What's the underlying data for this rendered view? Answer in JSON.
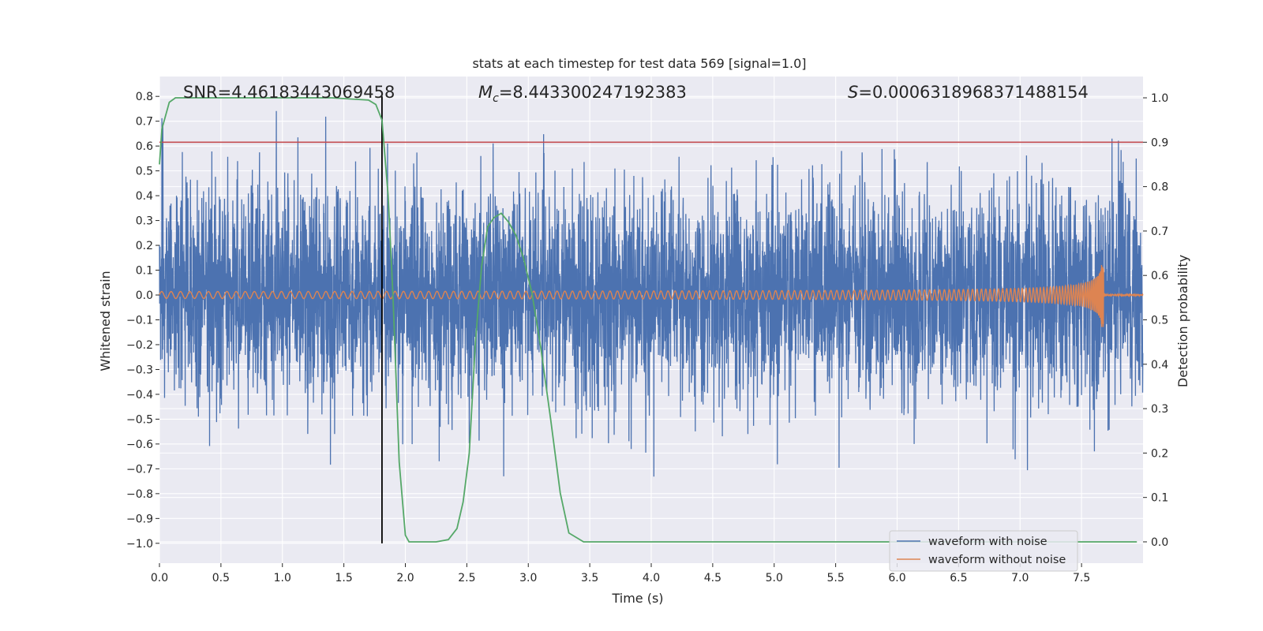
{
  "chart_data": {
    "type": "line",
    "title": "stats at each timestep for test data 569 [signal=1.0]",
    "xlabel": "Time (s)",
    "ylabel_left": "Whitened strain",
    "ylabel_right": "Detection probability",
    "xlim": [
      0.0,
      8.0
    ],
    "ylim_left": [
      -1.08,
      0.88
    ],
    "ylim_right": [
      -0.048,
      1.048
    ],
    "xticks": [
      "0.0",
      "0.5",
      "1.0",
      "1.5",
      "2.0",
      "2.5",
      "3.0",
      "3.5",
      "4.0",
      "4.5",
      "5.0",
      "5.5",
      "6.0",
      "6.5",
      "7.0",
      "7.5"
    ],
    "yticks_left": [
      "0.8",
      "0.7",
      "0.6",
      "0.5",
      "0.4",
      "0.3",
      "0.2",
      "0.1",
      "0.0",
      "−0.1",
      "−0.2",
      "−0.3",
      "−0.4",
      "−0.5",
      "−0.6",
      "−0.7",
      "−0.8",
      "−0.9",
      "−1.0"
    ],
    "yticks_right": [
      "1.0",
      "0.9",
      "0.8",
      "0.7",
      "0.6",
      "0.5",
      "0.4",
      "0.3",
      "0.2",
      "0.1",
      "0.0"
    ],
    "grid": true,
    "legend_position": "bottom-right",
    "annotations": {
      "snr": "SNR=4.46183443069458",
      "mc_symbol": "M",
      "mc_sub": "c",
      "mc_value": "=8.443300247192383",
      "s_symbol": "S",
      "s_value": "=0.0006318968371488154"
    },
    "threshold_probability": 0.9,
    "vline_time": 1.81,
    "series": [
      {
        "name": "waveform with noise",
        "color": "#4c72b0",
        "noise_envelope": [
          -0.74,
          0.79
        ]
      },
      {
        "name": "waveform without noise",
        "color": "#dd8452",
        "chirp": {
          "start_amplitude": 0.01,
          "peak_amplitude": 0.13,
          "merger_time": 7.68,
          "start_freq_hz": 13,
          "end_freq_hz": 60
        }
      },
      {
        "name": "detection probability",
        "color": "#55a868",
        "axis": "right",
        "t": [
          0.0,
          0.02,
          0.08,
          0.13,
          0.3,
          0.6,
          1.0,
          1.4,
          1.7,
          1.76,
          1.81,
          1.86,
          1.9,
          1.95,
          2.0,
          2.03,
          2.1,
          2.25,
          2.35,
          2.42,
          2.47,
          2.52,
          2.57,
          2.62,
          2.67,
          2.72,
          2.78,
          2.84,
          2.9,
          2.96,
          3.03,
          3.1,
          3.18,
          3.26,
          3.33,
          3.45,
          4.0,
          5.0,
          6.0,
          7.0,
          7.95
        ],
        "p": [
          0.85,
          0.93,
          0.99,
          1.0,
          1.0,
          1.0,
          1.0,
          1.0,
          0.995,
          0.985,
          0.95,
          0.78,
          0.55,
          0.18,
          0.015,
          0.0,
          0.0,
          0.0,
          0.005,
          0.03,
          0.09,
          0.2,
          0.45,
          0.62,
          0.71,
          0.73,
          0.74,
          0.72,
          0.69,
          0.64,
          0.56,
          0.44,
          0.28,
          0.11,
          0.02,
          0.0,
          0.0,
          0.0,
          0.0,
          0.0,
          0.0
        ]
      }
    ],
    "threshold_color": "#c44e52",
    "vline_color": "#000000"
  }
}
